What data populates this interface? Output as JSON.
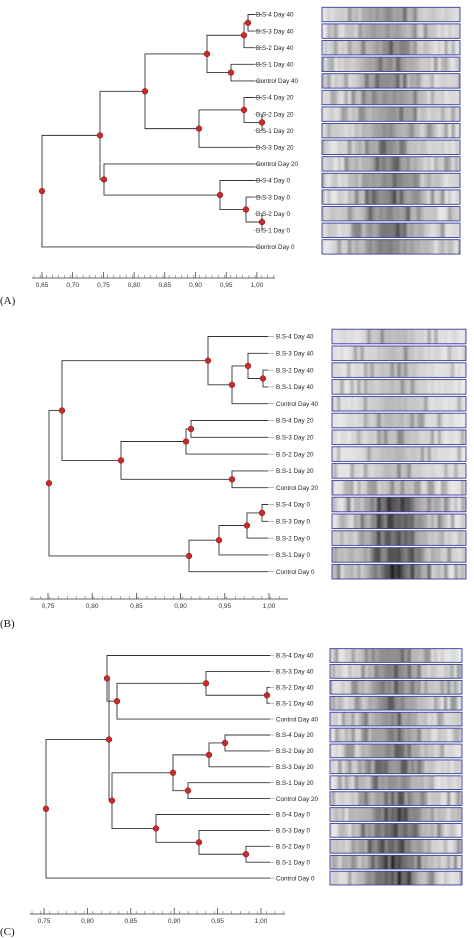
{
  "colors": {
    "node": "#cc2a2a",
    "line": "#333333",
    "gel_border": "#3a3f9e"
  },
  "panels": [
    {
      "letter": "(A)",
      "labels": [
        "B.S-4  Day 40",
        "B.S-3  Day 40",
        "B.S-2  Day 40",
        "B.S-1  Day 40",
        "Control  Day 40",
        "B.S-4  Day 20",
        "B.S-2  Day 20",
        "B.S-1  Day 20",
        "B.S-3  Day 20",
        "Control  Day 20",
        "B.S-4  Day 0",
        "B.S-3  Day 0",
        "B.S-2  Day 0",
        "B.S-1  Day 0",
        "Control  Day 0"
      ],
      "ticks": [
        "0,65",
        "0,70",
        "0,75",
        "0,80",
        "0,85",
        "0,90",
        "0,95",
        "1,00"
      ]
    },
    {
      "letter": "(B)",
      "labels": [
        "B.S-4  Day 40",
        "B.S-3  Day 40",
        "B.S-2  Day 40",
        "B.S-1  Day 40",
        "Control  Day 40",
        "B.S-4  Day 20",
        "B.S-3  Day 20",
        "B.S-2  Day 20",
        "B.S-1  Day 20",
        "Control  Day 20",
        "B.S-4  Day 0",
        "B.S-3  Day 0",
        "B.S-2  Day 0",
        "B.S-1  Day 0",
        "Control  Day 0"
      ],
      "ticks": [
        "0,75",
        "0,80",
        "0,85",
        "0,90",
        "0,95",
        "1,00"
      ]
    },
    {
      "letter": "(C)",
      "labels": [
        "B.S-4  Day 40",
        "B.S-3  Day 40",
        "B.S-2  Day 40",
        "B.S-1  Day 40",
        "Control  Day 40",
        "B.S-4  Day 20",
        "B.S-2  Day 20",
        "B.S-3  Day 20",
        "B.S-1  Day 20",
        "Control  Day 20",
        "B.S-4  Day 0",
        "B.S-3  Day 0",
        "B.S-2  Day 0",
        "B.S-1  Day 0",
        "Control  Day 0"
      ],
      "ticks": [
        "0,75",
        "0,80",
        "0,85",
        "0,90",
        "0,95",
        "1,00"
      ]
    }
  ]
}
